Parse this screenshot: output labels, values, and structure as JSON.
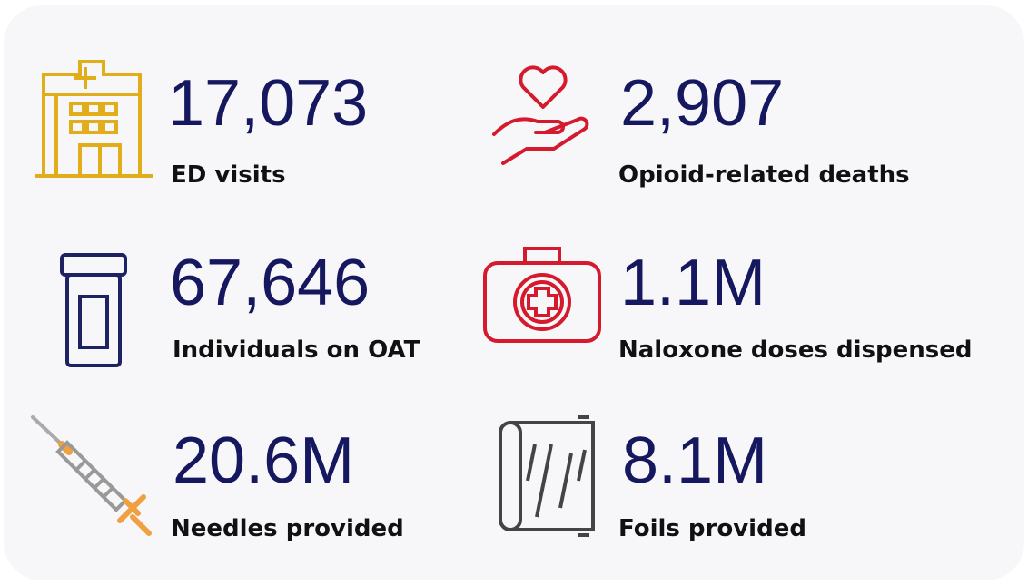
{
  "stats": [
    {
      "value": "17,073",
      "label": "ED visits"
    },
    {
      "value": "2,907",
      "label": "Opioid-related deaths"
    },
    {
      "value": "67,646",
      "label": "Individuals on OAT"
    },
    {
      "value": "1.1M",
      "label": "Naloxone doses dispensed"
    },
    {
      "value": "20.6M",
      "label": "Needles provided"
    },
    {
      "value": "8.1M",
      "label": "Foils provided"
    }
  ]
}
